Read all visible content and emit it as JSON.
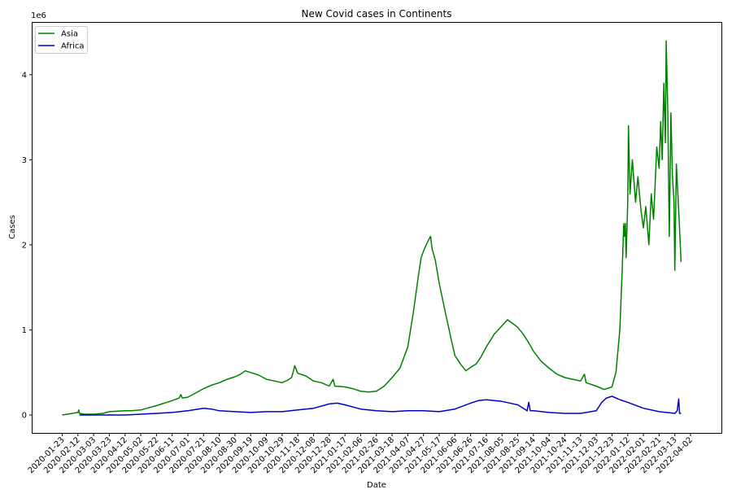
{
  "chart_data": {
    "type": "line",
    "title": "New Covid cases in Continents",
    "xlabel": "Date",
    "ylabel": "Cases",
    "y_offset_text": "1e6",
    "ylim": [
      -0.21,
      4.61
    ],
    "y_ticks": [
      0,
      1,
      2,
      3,
      4
    ],
    "y_tick_labels": [
      "0",
      "1",
      "2",
      "3",
      "4"
    ],
    "x_ticks": [
      "2020-01-23",
      "2020-02-12",
      "2020-03-03",
      "2020-03-23",
      "2020-04-12",
      "2020-05-02",
      "2020-05-22",
      "2020-06-11",
      "2020-07-01",
      "2020-07-21",
      "2020-08-10",
      "2020-08-30",
      "2020-09-19",
      "2020-10-09",
      "2020-10-29",
      "2020-11-18",
      "2020-12-08",
      "2020-12-28",
      "2021-01-17",
      "2021-02-06",
      "2021-02-26",
      "2021-03-18",
      "2021-04-07",
      "2021-04-27",
      "2021-05-17",
      "2021-06-06",
      "2021-06-26",
      "2021-07-16",
      "2021-08-05",
      "2021-08-25",
      "2021-09-14",
      "2021-10-04",
      "2021-10-24",
      "2021-11-13",
      "2021-12-03",
      "2021-12-23",
      "2022-01-12",
      "2022-02-01",
      "2022-02-21",
      "2022-03-13",
      "2022-04-02"
    ],
    "grid": false,
    "legend_position": "top-left",
    "series": [
      {
        "name": "Asia",
        "color": "#008000",
        "points": [
          [
            "2020-01-23",
            0.0
          ],
          [
            "2020-02-05",
            0.02
          ],
          [
            "2020-02-12",
            0.03
          ],
          [
            "2020-02-13",
            0.06
          ],
          [
            "2020-02-14",
            0.02
          ],
          [
            "2020-02-20",
            0.01
          ],
          [
            "2020-03-03",
            0.01
          ],
          [
            "2020-03-15",
            0.02
          ],
          [
            "2020-03-23",
            0.04
          ],
          [
            "2020-04-12",
            0.05
          ],
          [
            "2020-04-20",
            0.05
          ],
          [
            "2020-05-02",
            0.06
          ],
          [
            "2020-05-22",
            0.11
          ],
          [
            "2020-06-11",
            0.17
          ],
          [
            "2020-06-20",
            0.2
          ],
          [
            "2020-06-22",
            0.24
          ],
          [
            "2020-06-24",
            0.2
          ],
          [
            "2020-07-01",
            0.21
          ],
          [
            "2020-07-11",
            0.26
          ],
          [
            "2020-07-21",
            0.31
          ],
          [
            "2020-07-31",
            0.35
          ],
          [
            "2020-08-10",
            0.38
          ],
          [
            "2020-08-20",
            0.42
          ],
          [
            "2020-08-30",
            0.45
          ],
          [
            "2020-09-06",
            0.48
          ],
          [
            "2020-09-12",
            0.52
          ],
          [
            "2020-09-19",
            0.5
          ],
          [
            "2020-09-29",
            0.47
          ],
          [
            "2020-10-09",
            0.42
          ],
          [
            "2020-10-19",
            0.4
          ],
          [
            "2020-10-29",
            0.38
          ],
          [
            "2020-11-05",
            0.41
          ],
          [
            "2020-11-10",
            0.44
          ],
          [
            "2020-11-13",
            0.54
          ],
          [
            "2020-11-14",
            0.58
          ],
          [
            "2020-11-18",
            0.49
          ],
          [
            "2020-11-28",
            0.46
          ],
          [
            "2020-12-08",
            0.4
          ],
          [
            "2020-12-18",
            0.38
          ],
          [
            "2020-12-28",
            0.34
          ],
          [
            "2021-01-02",
            0.42
          ],
          [
            "2021-01-04",
            0.34
          ],
          [
            "2021-01-17",
            0.33
          ],
          [
            "2021-01-27",
            0.31
          ],
          [
            "2021-02-06",
            0.28
          ],
          [
            "2021-02-16",
            0.27
          ],
          [
            "2021-02-26",
            0.28
          ],
          [
            "2021-03-08",
            0.34
          ],
          [
            "2021-03-18",
            0.44
          ],
          [
            "2021-03-28",
            0.55
          ],
          [
            "2021-04-07",
            0.8
          ],
          [
            "2021-04-14",
            1.2
          ],
          [
            "2021-04-20",
            1.6
          ],
          [
            "2021-04-24",
            1.85
          ],
          [
            "2021-04-28",
            1.95
          ],
          [
            "2021-05-03",
            2.05
          ],
          [
            "2021-05-06",
            2.1
          ],
          [
            "2021-05-08",
            1.95
          ],
          [
            "2021-05-12",
            1.82
          ],
          [
            "2021-05-17",
            1.55
          ],
          [
            "2021-05-25",
            1.2
          ],
          [
            "2021-06-01",
            0.9
          ],
          [
            "2021-06-06",
            0.7
          ],
          [
            "2021-06-13",
            0.6
          ],
          [
            "2021-06-20",
            0.52
          ],
          [
            "2021-06-26",
            0.56
          ],
          [
            "2021-07-03",
            0.6
          ],
          [
            "2021-07-09",
            0.68
          ],
          [
            "2021-07-16",
            0.8
          ],
          [
            "2021-07-26",
            0.95
          ],
          [
            "2021-08-05",
            1.05
          ],
          [
            "2021-08-12",
            1.12
          ],
          [
            "2021-08-18",
            1.08
          ],
          [
            "2021-08-25",
            1.03
          ],
          [
            "2021-09-01",
            0.95
          ],
          [
            "2021-09-08",
            0.85
          ],
          [
            "2021-09-14",
            0.75
          ],
          [
            "2021-09-24",
            0.63
          ],
          [
            "2021-10-04",
            0.55
          ],
          [
            "2021-10-14",
            0.48
          ],
          [
            "2021-10-24",
            0.44
          ],
          [
            "2021-11-03",
            0.42
          ],
          [
            "2021-11-13",
            0.4
          ],
          [
            "2021-11-18",
            0.48
          ],
          [
            "2021-11-20",
            0.38
          ],
          [
            "2021-12-03",
            0.34
          ],
          [
            "2021-12-13",
            0.3
          ],
          [
            "2021-12-23",
            0.33
          ],
          [
            "2021-12-28",
            0.5
          ],
          [
            "2022-01-02",
            1.0
          ],
          [
            "2022-01-05",
            1.7
          ],
          [
            "2022-01-07",
            2.25
          ],
          [
            "2022-01-08",
            2.1
          ],
          [
            "2022-01-09",
            2.25
          ],
          [
            "2022-01-10",
            1.85
          ],
          [
            "2022-01-12",
            2.5
          ],
          [
            "2022-01-13",
            3.4
          ],
          [
            "2022-01-15",
            2.6
          ],
          [
            "2022-01-18",
            3.0
          ],
          [
            "2022-01-22",
            2.5
          ],
          [
            "2022-01-25",
            2.8
          ],
          [
            "2022-01-29",
            2.4
          ],
          [
            "2022-02-01",
            2.2
          ],
          [
            "2022-02-04",
            2.45
          ],
          [
            "2022-02-08",
            2.0
          ],
          [
            "2022-02-11",
            2.6
          ],
          [
            "2022-02-14",
            2.3
          ],
          [
            "2022-02-18",
            3.15
          ],
          [
            "2022-02-21",
            2.9
          ],
          [
            "2022-02-23",
            3.45
          ],
          [
            "2022-02-25",
            3.0
          ],
          [
            "2022-02-27",
            3.9
          ],
          [
            "2022-03-01",
            3.2
          ],
          [
            "2022-03-02",
            4.4
          ],
          [
            "2022-03-04",
            3.6
          ],
          [
            "2022-03-06",
            2.1
          ],
          [
            "2022-03-08",
            3.55
          ],
          [
            "2022-03-10",
            2.8
          ],
          [
            "2022-03-12",
            2.5
          ],
          [
            "2022-03-13",
            1.7
          ],
          [
            "2022-03-15",
            2.95
          ],
          [
            "2022-03-18",
            2.4
          ],
          [
            "2022-03-21",
            1.8
          ]
        ]
      },
      {
        "name": "Africa",
        "color": "#0000cc",
        "points": [
          [
            "2020-02-14",
            0.0
          ],
          [
            "2020-03-03",
            0.0
          ],
          [
            "2020-04-12",
            0.0
          ],
          [
            "2020-05-02",
            0.01
          ],
          [
            "2020-05-22",
            0.02
          ],
          [
            "2020-06-11",
            0.03
          ],
          [
            "2020-07-01",
            0.05
          ],
          [
            "2020-07-21",
            0.08
          ],
          [
            "2020-07-31",
            0.07
          ],
          [
            "2020-08-10",
            0.05
          ],
          [
            "2020-08-30",
            0.04
          ],
          [
            "2020-09-19",
            0.03
          ],
          [
            "2020-10-09",
            0.04
          ],
          [
            "2020-10-29",
            0.04
          ],
          [
            "2020-11-18",
            0.06
          ],
          [
            "2020-12-08",
            0.08
          ],
          [
            "2020-12-28",
            0.13
          ],
          [
            "2021-01-07",
            0.14
          ],
          [
            "2021-01-17",
            0.12
          ],
          [
            "2021-02-06",
            0.07
          ],
          [
            "2021-02-26",
            0.05
          ],
          [
            "2021-03-18",
            0.04
          ],
          [
            "2021-04-07",
            0.05
          ],
          [
            "2021-04-27",
            0.05
          ],
          [
            "2021-05-17",
            0.04
          ],
          [
            "2021-06-06",
            0.07
          ],
          [
            "2021-06-26",
            0.14
          ],
          [
            "2021-07-06",
            0.17
          ],
          [
            "2021-07-16",
            0.18
          ],
          [
            "2021-08-05",
            0.16
          ],
          [
            "2021-08-25",
            0.12
          ],
          [
            "2021-09-06",
            0.05
          ],
          [
            "2021-09-08",
            0.15
          ],
          [
            "2021-09-10",
            0.05
          ],
          [
            "2021-09-14",
            0.05
          ],
          [
            "2021-10-04",
            0.03
          ],
          [
            "2021-10-24",
            0.02
          ],
          [
            "2021-11-13",
            0.02
          ],
          [
            "2021-12-03",
            0.05
          ],
          [
            "2021-12-10",
            0.15
          ],
          [
            "2021-12-16",
            0.2
          ],
          [
            "2021-12-23",
            0.22
          ],
          [
            "2022-01-02",
            0.18
          ],
          [
            "2022-01-12",
            0.15
          ],
          [
            "2022-02-01",
            0.08
          ],
          [
            "2022-02-21",
            0.04
          ],
          [
            "2022-03-13",
            0.02
          ],
          [
            "2022-03-16",
            0.05
          ],
          [
            "2022-03-18",
            0.19
          ],
          [
            "2022-03-19",
            0.02
          ],
          [
            "2022-03-21",
            0.02
          ]
        ]
      }
    ]
  }
}
